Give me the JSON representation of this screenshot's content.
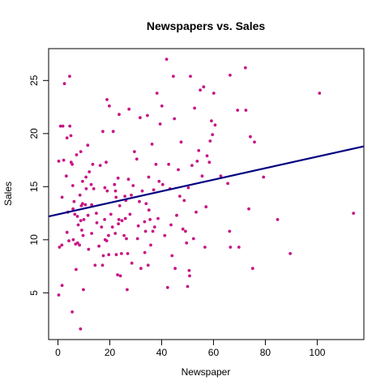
{
  "chart_data": {
    "type": "scatter",
    "title": "Newspapers vs. Sales",
    "xlabel": "Newspaper",
    "ylabel": "Sales",
    "xlim": [
      -3.6,
      118.0
    ],
    "ylim": [
      0.6,
      28.0
    ],
    "x_ticks": [
      0,
      20,
      40,
      60,
      80,
      100
    ],
    "y_ticks": [
      5,
      10,
      15,
      20,
      25
    ],
    "grid": false,
    "point_color": "#c71585",
    "line_color": "#000080",
    "regression_line": {
      "x": [
        -3.6,
        118.0
      ],
      "y": [
        12.2,
        18.8
      ]
    },
    "points": [
      [
        0.3,
        17.4
      ],
      [
        0.3,
        4.8
      ],
      [
        0.6,
        9.3
      ],
      [
        1.0,
        20.7
      ],
      [
        1.5,
        9.5
      ],
      [
        1.6,
        5.7
      ],
      [
        1.9,
        20.7
      ],
      [
        1.6,
        14.0
      ],
      [
        2.2,
        17.5
      ],
      [
        2.5,
        24.7
      ],
      [
        3.2,
        16.0
      ],
      [
        3.5,
        19.6
      ],
      [
        3.5,
        10.7
      ],
      [
        3.8,
        12.6
      ],
      [
        4.2,
        9.9
      ],
      [
        4.5,
        25.4
      ],
      [
        4.6,
        20.7
      ],
      [
        5.0,
        19.8
      ],
      [
        5.1,
        17.3
      ],
      [
        5.5,
        17.1
      ],
      [
        5.5,
        3.2
      ],
      [
        5.7,
        15.1
      ],
      [
        5.8,
        12.9
      ],
      [
        5.9,
        10.0
      ],
      [
        6.2,
        13.6
      ],
      [
        6.5,
        12.4
      ],
      [
        6.8,
        9.6
      ],
      [
        7.0,
        7.2
      ],
      [
        7.2,
        18.0
      ],
      [
        7.5,
        12.2
      ],
      [
        7.6,
        9.7
      ],
      [
        7.8,
        11.4
      ],
      [
        8.3,
        9.5
      ],
      [
        8.5,
        14.2
      ],
      [
        8.7,
        1.6
      ],
      [
        8.8,
        18.3
      ],
      [
        8.8,
        11.8
      ],
      [
        9.0,
        13.2
      ],
      [
        9.2,
        10.9
      ],
      [
        9.5,
        15.5
      ],
      [
        9.5,
        13.4
      ],
      [
        9.7,
        10.4
      ],
      [
        9.8,
        5.3
      ],
      [
        10.0,
        11.9
      ],
      [
        10.6,
        13.3
      ],
      [
        10.8,
        15.9
      ],
      [
        10.9,
        14.8
      ],
      [
        11.5,
        18.9
      ],
      [
        11.6,
        12.3
      ],
      [
        11.8,
        9.1
      ],
      [
        12.1,
        16.4
      ],
      [
        12.8,
        15.2
      ],
      [
        13.0,
        13.3
      ],
      [
        13.0,
        10.6
      ],
      [
        13.4,
        17.1
      ],
      [
        13.8,
        14.8
      ],
      [
        14.3,
        7.6
      ],
      [
        14.8,
        12.5
      ],
      [
        15.0,
        11.6
      ],
      [
        15.8,
        9.4
      ],
      [
        16.3,
        17.0
      ],
      [
        16.8,
        11.2
      ],
      [
        17.2,
        7.6
      ],
      [
        17.3,
        20.2
      ],
      [
        17.5,
        8.5
      ],
      [
        18.0,
        11.9
      ],
      [
        18.1,
        14.9
      ],
      [
        18.2,
        10.0
      ],
      [
        18.6,
        17.3
      ],
      [
        18.8,
        9.9
      ],
      [
        18.9,
        23.2
      ],
      [
        19.0,
        14.6
      ],
      [
        19.5,
        10.4
      ],
      [
        19.6,
        8.6
      ],
      [
        19.8,
        22.6
      ],
      [
        20.4,
        12.4
      ],
      [
        21.0,
        11.2
      ],
      [
        21.3,
        20.2
      ],
      [
        21.8,
        15.2
      ],
      [
        22.1,
        10.6
      ],
      [
        22.2,
        14.6
      ],
      [
        22.4,
        14.0
      ],
      [
        22.5,
        8.6
      ],
      [
        23.0,
        6.7
      ],
      [
        23.2,
        15.8
      ],
      [
        23.3,
        11.5
      ],
      [
        23.5,
        11.9
      ],
      [
        23.6,
        21.8
      ],
      [
        23.8,
        13.2
      ],
      [
        24.1,
        6.6
      ],
      [
        24.5,
        8.7
      ],
      [
        24.7,
        11.8
      ],
      [
        25.5,
        10.4
      ],
      [
        25.8,
        14.1
      ],
      [
        26.0,
        12.0
      ],
      [
        26.2,
        13.7
      ],
      [
        26.4,
        10.1
      ],
      [
        26.7,
        5.3
      ],
      [
        26.9,
        8.7
      ],
      [
        27.2,
        15.7
      ],
      [
        27.4,
        22.3
      ],
      [
        27.8,
        12.4
      ],
      [
        28.3,
        14.2
      ],
      [
        28.5,
        7.8
      ],
      [
        29.0,
        15.1
      ],
      [
        29.5,
        18.3
      ],
      [
        30.4,
        17.6
      ],
      [
        30.7,
        10.1
      ],
      [
        31.0,
        11.3
      ],
      [
        31.4,
        13.6
      ],
      [
        31.7,
        21.5
      ],
      [
        32.0,
        7.3
      ],
      [
        32.5,
        14.6
      ],
      [
        33.4,
        11.7
      ],
      [
        33.5,
        8.8
      ],
      [
        33.8,
        10.8
      ],
      [
        34.0,
        13.4
      ],
      [
        34.5,
        21.7
      ],
      [
        34.8,
        7.6
      ],
      [
        35.0,
        15.9
      ],
      [
        35.1,
        12.8
      ],
      [
        35.5,
        11.9
      ],
      [
        35.8,
        9.5
      ],
      [
        36.3,
        19.0
      ],
      [
        36.6,
        10.8
      ],
      [
        36.9,
        14.7
      ],
      [
        37.3,
        11.2
      ],
      [
        37.8,
        17.1
      ],
      [
        38.2,
        23.8
      ],
      [
        38.6,
        12.0
      ],
      [
        39.0,
        15.5
      ],
      [
        39.4,
        20.9
      ],
      [
        40.1,
        22.6
      ],
      [
        40.4,
        15.2
      ],
      [
        41.2,
        10.4
      ],
      [
        41.9,
        27.0
      ],
      [
        42.3,
        5.5
      ],
      [
        42.7,
        17.1
      ],
      [
        43.2,
        14.8
      ],
      [
        43.6,
        11.4
      ],
      [
        44.0,
        8.5
      ],
      [
        44.5,
        25.4
      ],
      [
        44.9,
        21.4
      ],
      [
        45.2,
        7.3
      ],
      [
        45.8,
        12.3
      ],
      [
        46.4,
        16.6
      ],
      [
        47.0,
        14.1
      ],
      [
        47.5,
        19.2
      ],
      [
        48.2,
        11.0
      ],
      [
        48.7,
        13.7
      ],
      [
        49.2,
        10.8
      ],
      [
        49.6,
        9.7
      ],
      [
        50.0,
        5.6
      ],
      [
        50.3,
        14.9
      ],
      [
        50.6,
        7.1
      ],
      [
        50.8,
        6.6
      ],
      [
        51.1,
        25.4
      ],
      [
        51.7,
        17.0
      ],
      [
        52.3,
        10.1
      ],
      [
        52.7,
        22.4
      ],
      [
        53.3,
        12.6
      ],
      [
        53.7,
        17.4
      ],
      [
        54.3,
        18.4
      ],
      [
        54.9,
        24.1
      ],
      [
        55.6,
        16.0
      ],
      [
        56.2,
        24.4
      ],
      [
        56.7,
        9.3
      ],
      [
        57.1,
        13.1
      ],
      [
        57.5,
        17.9
      ],
      [
        58.4,
        17.3
      ],
      [
        58.7,
        19.3
      ],
      [
        59.2,
        21.2
      ],
      [
        59.6,
        19.9
      ],
      [
        60.1,
        23.8
      ],
      [
        60.6,
        20.8
      ],
      [
        62.8,
        16.0
      ],
      [
        65.5,
        15.3
      ],
      [
        66.2,
        10.8
      ],
      [
        66.4,
        25.5
      ],
      [
        66.5,
        9.3
      ],
      [
        69.3,
        22.2
      ],
      [
        69.8,
        9.3
      ],
      [
        72.3,
        26.2
      ],
      [
        72.5,
        22.2
      ],
      [
        73.6,
        12.9
      ],
      [
        74.2,
        19.7
      ],
      [
        75.1,
        7.3
      ],
      [
        75.8,
        19.2
      ],
      [
        79.3,
        15.9
      ],
      [
        84.7,
        11.9
      ],
      [
        89.6,
        8.7
      ],
      [
        100.9,
        23.8
      ],
      [
        114.0,
        12.5
      ]
    ]
  }
}
